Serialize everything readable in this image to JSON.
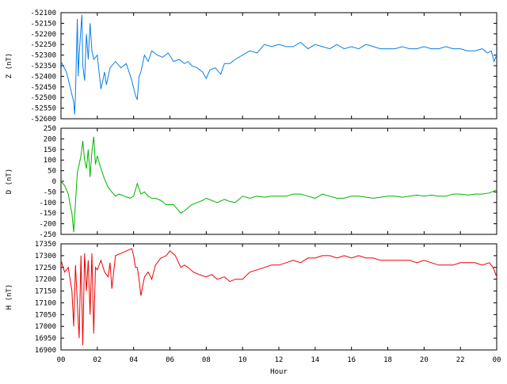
{
  "chart_data": [
    {
      "type": "line",
      "panel": "Z",
      "ylabel": "Z (nT)",
      "ylim": [
        -52600,
        -52100
      ],
      "y_ticks": [
        "-52100",
        "-52150",
        "-52200",
        "-52250",
        "-52300",
        "-52350",
        "-52400",
        "-52450",
        "-52500",
        "-52550",
        "-52600"
      ],
      "color": "#0a7ee6",
      "x_hours": [
        0,
        0.3,
        0.5,
        0.7,
        0.75,
        0.8,
        0.9,
        0.95,
        1.0,
        1.1,
        1.15,
        1.2,
        1.3,
        1.4,
        1.5,
        1.6,
        1.7,
        1.8,
        2.0,
        2.2,
        2.4,
        2.5,
        2.7,
        3.0,
        3.3,
        3.6,
        3.9,
        4.1,
        4.2,
        4.3,
        4.4,
        4.6,
        4.8,
        5.0,
        5.3,
        5.6,
        5.9,
        6.2,
        6.5,
        6.8,
        7.0,
        7.2,
        7.5,
        7.8,
        8.0,
        8.2,
        8.5,
        8.8,
        9.0,
        9.3,
        9.6,
        10.0,
        10.4,
        10.8,
        11.2,
        11.6,
        12.0,
        12.4,
        12.8,
        13.2,
        13.6,
        14.0,
        14.4,
        14.8,
        15.2,
        15.6,
        16.0,
        16.4,
        16.8,
        17.2,
        17.6,
        18.0,
        18.4,
        18.8,
        19.2,
        19.6,
        20.0,
        20.4,
        20.8,
        21.2,
        21.6,
        22.0,
        22.4,
        22.8,
        23.2,
        23.5,
        23.7,
        23.85,
        24.0
      ],
      "y": [
        -52330,
        -52380,
        -52450,
        -52520,
        -52580,
        -52480,
        -52130,
        -52400,
        -52300,
        -52170,
        -52110,
        -52350,
        -52420,
        -52200,
        -52320,
        -52150,
        -52280,
        -52320,
        -52300,
        -52460,
        -52380,
        -52440,
        -52360,
        -52330,
        -52360,
        -52340,
        -52420,
        -52490,
        -52510,
        -52400,
        -52380,
        -52300,
        -52330,
        -52280,
        -52300,
        -52310,
        -52290,
        -52330,
        -52320,
        -52340,
        -52330,
        -52350,
        -52360,
        -52380,
        -52410,
        -52370,
        -52360,
        -52390,
        -52340,
        -52340,
        -52320,
        -52300,
        -52280,
        -52290,
        -52250,
        -52260,
        -52250,
        -52260,
        -52260,
        -52240,
        -52270,
        -52250,
        -52260,
        -52270,
        -52250,
        -52270,
        -52260,
        -52270,
        -52250,
        -52260,
        -52270,
        -52270,
        -52270,
        -52260,
        -52270,
        -52270,
        -52260,
        -52270,
        -52270,
        -52260,
        -52270,
        -52270,
        -52280,
        -52280,
        -52270,
        -52290,
        -52280,
        -52330,
        -52300
      ]
    },
    {
      "type": "line",
      "panel": "D",
      "ylabel": "D (nT)",
      "ylim": [
        -250,
        250
      ],
      "y_ticks": [
        "250",
        "200",
        "150",
        "100",
        "50",
        "0",
        "-50",
        "-100",
        "-150",
        "-200",
        "-250"
      ],
      "color": "#00b400",
      "x_hours": [
        0,
        0.2,
        0.4,
        0.5,
        0.6,
        0.7,
        0.8,
        0.9,
        1.0,
        1.1,
        1.2,
        1.3,
        1.4,
        1.5,
        1.6,
        1.7,
        1.8,
        1.9,
        2.0,
        2.2,
        2.4,
        2.6,
        2.8,
        3.0,
        3.2,
        3.5,
        3.8,
        4.0,
        4.2,
        4.4,
        4.6,
        4.8,
        5.0,
        5.2,
        5.5,
        5.8,
        6.0,
        6.2,
        6.4,
        6.6,
        6.8,
        7.0,
        7.2,
        7.5,
        7.8,
        8.0,
        8.3,
        8.6,
        9.0,
        9.3,
        9.6,
        10.0,
        10.4,
        10.8,
        11.2,
        11.6,
        12.0,
        12.4,
        12.8,
        13.2,
        13.6,
        14.0,
        14.4,
        14.8,
        15.2,
        15.6,
        16.0,
        16.4,
        16.8,
        17.2,
        17.6,
        18.0,
        18.4,
        18.8,
        19.2,
        19.6,
        20.0,
        20.4,
        20.8,
        21.2,
        21.6,
        22.0,
        22.4,
        22.8,
        23.2,
        23.6,
        24.0
      ],
      "y": [
        0,
        -20,
        -60,
        -110,
        -150,
        -240,
        -100,
        40,
        80,
        120,
        190,
        100,
        60,
        150,
        20,
        140,
        210,
        80,
        120,
        60,
        10,
        -30,
        -50,
        -70,
        -60,
        -70,
        -80,
        -70,
        -10,
        -60,
        -50,
        -70,
        -80,
        -80,
        -90,
        -110,
        -110,
        -110,
        -130,
        -150,
        -140,
        -125,
        -110,
        -100,
        -90,
        -80,
        -90,
        -100,
        -85,
        -95,
        -100,
        -70,
        -80,
        -70,
        -75,
        -70,
        -70,
        -70,
        -60,
        -60,
        -70,
        -80,
        -60,
        -70,
        -80,
        -80,
        -70,
        -70,
        -75,
        -80,
        -75,
        -70,
        -70,
        -75,
        -70,
        -65,
        -70,
        -65,
        -70,
        -70,
        -60,
        -60,
        -65,
        -60,
        -60,
        -55,
        -40
      ]
    },
    {
      "type": "line",
      "panel": "H",
      "ylabel": "H (nT)",
      "xlabel": "Hour",
      "ylim": [
        16900,
        17350
      ],
      "y_ticks": [
        "17350",
        "17300",
        "17250",
        "17200",
        "17150",
        "17100",
        "17050",
        "17000",
        "16950",
        "16900"
      ],
      "x_ticks": [
        "00",
        "02",
        "04",
        "06",
        "08",
        "10",
        "12",
        "14",
        "16",
        "18",
        "20",
        "22",
        "00"
      ],
      "color": "#ee0000",
      "x_hours": [
        0,
        0.2,
        0.4,
        0.6,
        0.7,
        0.8,
        0.9,
        1.0,
        1.1,
        1.2,
        1.3,
        1.4,
        1.5,
        1.6,
        1.7,
        1.8,
        1.9,
        2.0,
        2.2,
        2.4,
        2.6,
        2.7,
        2.8,
        3.0,
        3.3,
        3.6,
        3.9,
        4.0,
        4.1,
        4.2,
        4.3,
        4.4,
        4.6,
        4.8,
        5.0,
        5.2,
        5.5,
        5.8,
        6.0,
        6.3,
        6.6,
        6.8,
        7.0,
        7.3,
        7.6,
        8.0,
        8.3,
        8.6,
        9.0,
        9.3,
        9.6,
        10.0,
        10.4,
        10.8,
        11.2,
        11.6,
        12.0,
        12.4,
        12.8,
        13.2,
        13.6,
        14.0,
        14.4,
        14.8,
        15.2,
        15.6,
        16.0,
        16.4,
        16.8,
        17.2,
        17.6,
        18.0,
        18.4,
        18.8,
        19.2,
        19.6,
        20.0,
        20.4,
        20.8,
        21.2,
        21.6,
        22.0,
        22.4,
        22.8,
        23.2,
        23.6,
        23.8,
        24.0
      ],
      "y": [
        17280,
        17230,
        17250,
        17150,
        17000,
        17260,
        17100,
        16950,
        17300,
        16920,
        17310,
        17150,
        17280,
        17050,
        17310,
        16970,
        17250,
        17240,
        17280,
        17230,
        17210,
        17270,
        17160,
        17300,
        17310,
        17320,
        17330,
        17300,
        17250,
        17250,
        17200,
        17130,
        17210,
        17230,
        17200,
        17260,
        17290,
        17300,
        17320,
        17300,
        17250,
        17260,
        17250,
        17230,
        17220,
        17210,
        17220,
        17200,
        17210,
        17190,
        17200,
        17200,
        17230,
        17240,
        17250,
        17260,
        17260,
        17270,
        17280,
        17270,
        17290,
        17290,
        17300,
        17300,
        17290,
        17300,
        17290,
        17300,
        17290,
        17290,
        17280,
        17280,
        17280,
        17280,
        17280,
        17270,
        17280,
        17270,
        17260,
        17260,
        17260,
        17270,
        17270,
        17270,
        17260,
        17270,
        17250,
        17210
      ]
    }
  ]
}
